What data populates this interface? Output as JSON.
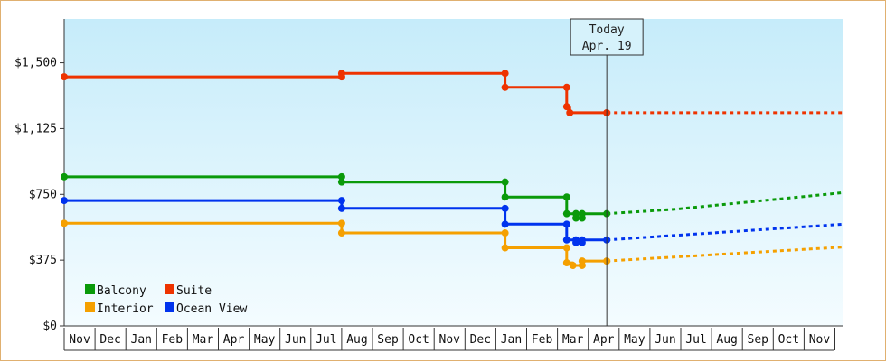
{
  "chart_data": {
    "type": "line",
    "title": "",
    "xlabel": "",
    "ylabel": "",
    "ylim": [
      0,
      1750
    ],
    "y_ticks": [
      {
        "value": 0,
        "label": "$0"
      },
      {
        "value": 375,
        "label": "$375"
      },
      {
        "value": 750,
        "label": "$750"
      },
      {
        "value": 1125,
        "label": "$1,125"
      },
      {
        "value": 1500,
        "label": "$1,500"
      }
    ],
    "x_months": [
      "Nov",
      "Dec",
      "Jan",
      "Feb",
      "Mar",
      "Apr",
      "May",
      "Jun",
      "Jul",
      "Aug",
      "Sep",
      "Oct",
      "Nov",
      "Dec",
      "Jan",
      "Feb",
      "Mar",
      "Apr",
      "May",
      "Jun",
      "Jul",
      "Aug",
      "Sep",
      "Oct",
      "Nov"
    ],
    "today": {
      "line1": "Today",
      "line2": "Apr. 19",
      "month_offset": 17.6
    },
    "grid": false,
    "legend_position": "bottom-left",
    "series": [
      {
        "name": "Balcony",
        "color": "#0a9a0a",
        "history": [
          [
            0.0,
            850
          ],
          [
            9.0,
            850
          ],
          [
            9.0,
            820
          ],
          [
            14.3,
            820
          ],
          [
            14.3,
            735
          ],
          [
            16.3,
            735
          ],
          [
            16.3,
            640
          ],
          [
            16.6,
            640
          ],
          [
            16.6,
            615
          ],
          [
            16.8,
            615
          ],
          [
            16.8,
            640
          ],
          [
            17.6,
            640
          ]
        ],
        "markers": [
          [
            0.0,
            850
          ],
          [
            9.0,
            850
          ],
          [
            9.0,
            820
          ],
          [
            14.3,
            820
          ],
          [
            14.3,
            735
          ],
          [
            16.3,
            735
          ],
          [
            16.3,
            640
          ],
          [
            16.6,
            640
          ],
          [
            16.6,
            615
          ],
          [
            16.8,
            615
          ],
          [
            16.8,
            640
          ],
          [
            17.6,
            640
          ]
        ],
        "forecast": [
          [
            17.6,
            640
          ],
          [
            19.8,
            665
          ],
          [
            25.3,
            760
          ]
        ]
      },
      {
        "name": "Suite",
        "color": "#ee3300",
        "history": [
          [
            0.0,
            1420
          ],
          [
            9.0,
            1420
          ],
          [
            9.0,
            1440
          ],
          [
            14.3,
            1440
          ],
          [
            14.3,
            1360
          ],
          [
            16.3,
            1360
          ],
          [
            16.3,
            1250
          ],
          [
            16.4,
            1250
          ],
          [
            16.4,
            1215
          ],
          [
            17.6,
            1215
          ]
        ],
        "markers": [
          [
            0.0,
            1420
          ],
          [
            9.0,
            1420
          ],
          [
            9.0,
            1440
          ],
          [
            14.3,
            1440
          ],
          [
            14.3,
            1360
          ],
          [
            16.3,
            1360
          ],
          [
            16.3,
            1250
          ],
          [
            16.4,
            1215
          ],
          [
            17.6,
            1215
          ]
        ],
        "forecast": [
          [
            17.6,
            1215
          ],
          [
            25.3,
            1215
          ]
        ]
      },
      {
        "name": "Interior",
        "color": "#f5a000",
        "history": [
          [
            0.0,
            585
          ],
          [
            9.0,
            585
          ],
          [
            9.0,
            530
          ],
          [
            14.3,
            530
          ],
          [
            14.3,
            445
          ],
          [
            16.3,
            445
          ],
          [
            16.3,
            360
          ],
          [
            16.5,
            360
          ],
          [
            16.5,
            345
          ],
          [
            16.8,
            345
          ],
          [
            16.8,
            370
          ],
          [
            17.6,
            370
          ]
        ],
        "markers": [
          [
            0.0,
            585
          ],
          [
            9.0,
            585
          ],
          [
            9.0,
            530
          ],
          [
            14.3,
            530
          ],
          [
            14.3,
            445
          ],
          [
            16.3,
            445
          ],
          [
            16.3,
            360
          ],
          [
            16.5,
            345
          ],
          [
            16.8,
            345
          ],
          [
            16.8,
            370
          ],
          [
            17.6,
            370
          ]
        ],
        "forecast": [
          [
            17.6,
            370
          ],
          [
            25.3,
            450
          ]
        ]
      },
      {
        "name": "Ocean View",
        "color": "#0033ee",
        "history": [
          [
            0.0,
            715
          ],
          [
            9.0,
            715
          ],
          [
            9.0,
            670
          ],
          [
            14.3,
            670
          ],
          [
            14.3,
            580
          ],
          [
            16.3,
            580
          ],
          [
            16.3,
            490
          ],
          [
            16.6,
            490
          ],
          [
            16.6,
            475
          ],
          [
            16.8,
            475
          ],
          [
            16.8,
            490
          ],
          [
            17.6,
            490
          ]
        ],
        "markers": [
          [
            0.0,
            715
          ],
          [
            9.0,
            715
          ],
          [
            9.0,
            670
          ],
          [
            14.3,
            670
          ],
          [
            14.3,
            580
          ],
          [
            16.3,
            580
          ],
          [
            16.3,
            490
          ],
          [
            16.6,
            490
          ],
          [
            16.6,
            475
          ],
          [
            16.8,
            475
          ],
          [
            16.8,
            490
          ],
          [
            17.6,
            490
          ]
        ],
        "forecast": [
          [
            17.6,
            490
          ],
          [
            25.3,
            580
          ]
        ]
      }
    ],
    "legend": [
      {
        "name": "Balcony",
        "color": "#0a9a0a"
      },
      {
        "name": "Suite",
        "color": "#ee3300"
      },
      {
        "name": "Interior",
        "color": "#f5a000"
      },
      {
        "name": "Ocean View",
        "color": "#0033ee"
      }
    ]
  }
}
